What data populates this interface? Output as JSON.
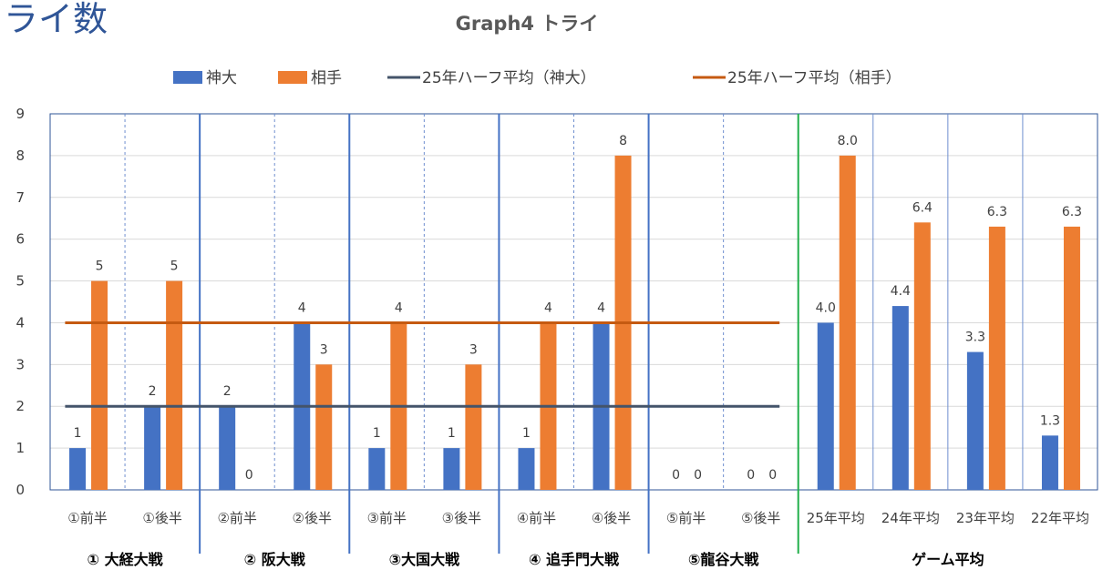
{
  "page": {
    "heading": "ライ数"
  },
  "chart_data": {
    "type": "bar",
    "title": "Graph4 トライ",
    "ylim": [
      0,
      9
    ],
    "yticks": [
      0,
      1,
      2,
      3,
      4,
      5,
      6,
      7,
      8,
      9
    ],
    "categories": [
      "①前半",
      "①後半",
      "②前半",
      "②後半",
      "③前半",
      "③後半",
      "④前半",
      "④後半",
      "⑤前半",
      "⑤後半",
      "25年平均",
      "24年平均",
      "23年平均",
      "22年平均"
    ],
    "groups": [
      {
        "label": "① 大経大戦",
        "start": 0,
        "end": 1
      },
      {
        "label": "② 阪大戦",
        "start": 2,
        "end": 3
      },
      {
        "label": "③大国大戦",
        "start": 4,
        "end": 5
      },
      {
        "label": "④ 追手門大戦",
        "start": 6,
        "end": 7
      },
      {
        "label": "⑤龍谷大戦",
        "start": 8,
        "end": 9
      },
      {
        "label": "ゲーム平均",
        "start": 10,
        "end": 13
      }
    ],
    "series": [
      {
        "name": "神大",
        "color": "#4472c4",
        "values": [
          1,
          2,
          2,
          4,
          1,
          1,
          1,
          4,
          0,
          0,
          4.0,
          4.4,
          3.3,
          1.3
        ],
        "labels": [
          "1",
          "2",
          "2",
          "4",
          "1",
          "1",
          "1",
          "4",
          "0",
          "0",
          "4.0",
          "4.4",
          "3.3",
          "1.3"
        ]
      },
      {
        "name": "相手",
        "color": "#ed7d31",
        "values": [
          5,
          5,
          0,
          3,
          4,
          3,
          4,
          8,
          0,
          0,
          8.0,
          6.4,
          6.3,
          6.3
        ],
        "labels": [
          "5",
          "5",
          "0",
          "3",
          "4",
          "3",
          "4",
          "8",
          "0",
          "0",
          "8.0",
          "6.4",
          "6.3",
          "6.3"
        ]
      }
    ],
    "reference_lines": [
      {
        "name": "25年ハーフ平均（神大）",
        "value": 2,
        "color": "#44546a",
        "from": 0,
        "to": 9
      },
      {
        "name": "25年ハーフ平均（相手）",
        "value": 4,
        "color": "#c55a11",
        "from": 0,
        "to": 9
      }
    ],
    "legend_position": "top",
    "grid": true
  }
}
